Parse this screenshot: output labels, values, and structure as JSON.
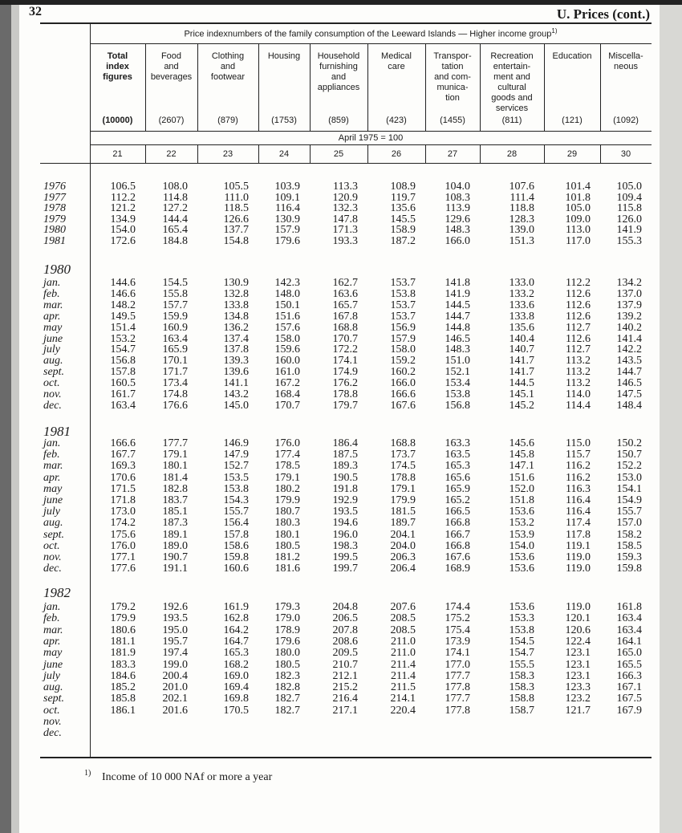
{
  "header": {
    "page_number": "32",
    "section": "U.  Prices (cont.)"
  },
  "table": {
    "title": "Price indexnumbers of the family consumption of the Leeward Islands — Higher income group",
    "title_note": "1)",
    "columns": [
      {
        "label": "Total\nindex\nfigures",
        "weight": "(10000)",
        "number": "21"
      },
      {
        "label": "Food\nand\nbeverages",
        "weight": "(2607)",
        "number": "22"
      },
      {
        "label": "Clothing\nand\nfootwear",
        "weight": "(879)",
        "number": "23"
      },
      {
        "label": "Housing",
        "weight": "(1753)",
        "number": "24"
      },
      {
        "label": "Household\nfurnishing\nand\nappliances",
        "weight": "(859)",
        "number": "25"
      },
      {
        "label": "Medical\ncare",
        "weight": "(423)",
        "number": "26"
      },
      {
        "label": "Transpor-\ntation\nand com-\nmunica-\ntion",
        "weight": "(1455)",
        "number": "27"
      },
      {
        "label": "Recreation\nentertain-\nment and\ncultural\ngoods and\nservices",
        "weight": "(811)",
        "number": "28"
      },
      {
        "label": "Education",
        "weight": "(121)",
        "number": "29"
      },
      {
        "label": "Miscella-\nneous",
        "weight": "(1092)",
        "number": "30"
      }
    ],
    "base": "April 1975 = 100",
    "groups": [
      {
        "rows": [
          {
            "label": "1976",
            "values": [
              "106.5",
              "108.0",
              "105.5",
              "103.9",
              "113.3",
              "108.9",
              "104.0",
              "107.6",
              "101.4",
              "105.0"
            ]
          },
          {
            "label": "1977",
            "values": [
              "112.2",
              "114.8",
              "111.0",
              "109.1",
              "120.9",
              "119.7",
              "108.3",
              "111.4",
              "101.8",
              "109.4"
            ]
          },
          {
            "label": "1978",
            "values": [
              "121.2",
              "127.2",
              "118.5",
              "116.4",
              "132.3",
              "135.6",
              "113.9",
              "118.8",
              "105.0",
              "115.8"
            ]
          },
          {
            "label": "1979",
            "values": [
              "134.9",
              "144.4",
              "126.6",
              "130.9",
              "147.8",
              "145.5",
              "129.6",
              "128.3",
              "109.0",
              "126.0"
            ]
          },
          {
            "label": "1980",
            "values": [
              "154.0",
              "165.4",
              "137.7",
              "157.9",
              "171.3",
              "158.9",
              "148.3",
              "139.0",
              "113.0",
              "141.9"
            ]
          },
          {
            "label": "1981",
            "values": [
              "172.6",
              "184.8",
              "154.8",
              "179.6",
              "193.3",
              "187.2",
              "166.0",
              "151.3",
              "117.0",
              "155.3"
            ]
          }
        ]
      },
      {
        "heading": "1980",
        "rows": [
          {
            "label": "jan.",
            "values": [
              "144.6",
              "154.5",
              "130.9",
              "142.3",
              "162.7",
              "153.7",
              "141.8",
              "133.0",
              "112.2",
              "134.2"
            ]
          },
          {
            "label": "feb.",
            "values": [
              "146.6",
              "155.8",
              "132.8",
              "148.0",
              "163.6",
              "153.8",
              "141.9",
              "133.2",
              "112.6",
              "137.0"
            ]
          },
          {
            "label": "mar.",
            "values": [
              "148.2",
              "157.7",
              "133.8",
              "150.1",
              "165.7",
              "153.7",
              "144.5",
              "133.6",
              "112.6",
              "137.9"
            ]
          },
          {
            "label": "apr.",
            "values": [
              "149.5",
              "159.9",
              "134.8",
              "151.6",
              "167.8",
              "153.7",
              "144.7",
              "133.8",
              "112.6",
              "139.2"
            ]
          },
          {
            "label": "may",
            "values": [
              "151.4",
              "160.9",
              "136.2",
              "157.6",
              "168.8",
              "156.9",
              "144.8",
              "135.6",
              "112.7",
              "140.2"
            ]
          },
          {
            "label": "june",
            "values": [
              "153.2",
              "163.4",
              "137.4",
              "158.0",
              "170.7",
              "157.9",
              "146.5",
              "140.4",
              "112.6",
              "141.4"
            ]
          },
          {
            "label": "july",
            "values": [
              "154.7",
              "165.9",
              "137.8",
              "159.6",
              "172.2",
              "158.0",
              "148.3",
              "140.7",
              "112.7",
              "142.2"
            ]
          },
          {
            "label": "aug.",
            "values": [
              "156.8",
              "170.1",
              "139.3",
              "160.0",
              "174.1",
              "159.2",
              "151.0",
              "141.7",
              "113.2",
              "143.5"
            ]
          },
          {
            "label": "sept.",
            "values": [
              "157.8",
              "171.7",
              "139.6",
              "161.0",
              "174.9",
              "160.2",
              "152.1",
              "141.7",
              "113.2",
              "144.7"
            ]
          },
          {
            "label": "oct.",
            "values": [
              "160.5",
              "173.4",
              "141.1",
              "167.2",
              "176.2",
              "166.0",
              "153.4",
              "144.5",
              "113.2",
              "146.5"
            ]
          },
          {
            "label": "nov.",
            "values": [
              "161.7",
              "174.8",
              "143.2",
              "168.4",
              "178.8",
              "166.6",
              "153.8",
              "145.1",
              "114.0",
              "147.5"
            ]
          },
          {
            "label": "dec.",
            "values": [
              "163.4",
              "176.6",
              "145.0",
              "170.7",
              "179.7",
              "167.6",
              "156.8",
              "145.2",
              "114.4",
              "148.4"
            ]
          }
        ]
      },
      {
        "heading": "1981",
        "rows": [
          {
            "label": "jan.",
            "values": [
              "166.6",
              "177.7",
              "146.9",
              "176.0",
              "186.4",
              "168.8",
              "163.3",
              "145.6",
              "115.0",
              "150.2"
            ]
          },
          {
            "label": "feb.",
            "values": [
              "167.7",
              "179.1",
              "147.9",
              "177.4",
              "187.5",
              "173.7",
              "163.5",
              "145.8",
              "115.7",
              "150.7"
            ]
          },
          {
            "label": "mar.",
            "values": [
              "169.3",
              "180.1",
              "152.7",
              "178.5",
              "189.3",
              "174.5",
              "165.3",
              "147.1",
              "116.2",
              "152.2"
            ]
          },
          {
            "label": "apr.",
            "values": [
              "170.6",
              "181.4",
              "153.5",
              "179.1",
              "190.5",
              "178.8",
              "165.6",
              "151.6",
              "116.2",
              "153.0"
            ]
          },
          {
            "label": "may",
            "values": [
              "171.5",
              "182.8",
              "153.8",
              "180.2",
              "191.8",
              "179.1",
              "165.9",
              "152.0",
              "116.3",
              "154.1"
            ]
          },
          {
            "label": "june",
            "values": [
              "171.8",
              "183.7",
              "154.3",
              "179.9",
              "192.9",
              "179.9",
              "165.2",
              "151.8",
              "116.4",
              "154.9"
            ]
          },
          {
            "label": "july",
            "values": [
              "173.0",
              "185.1",
              "155.7",
              "180.7",
              "193.5",
              "181.5",
              "166.5",
              "153.6",
              "116.4",
              "155.7"
            ]
          },
          {
            "label": "aug.",
            "values": [
              "174.2",
              "187.3",
              "156.4",
              "180.3",
              "194.6",
              "189.7",
              "166.8",
              "153.2",
              "117.4",
              "157.0"
            ]
          },
          {
            "label": "sept.",
            "values": [
              "175.6",
              "189.1",
              "157.8",
              "180.1",
              "196.0",
              "204.1",
              "166.7",
              "153.9",
              "117.8",
              "158.2"
            ]
          },
          {
            "label": "oct.",
            "values": [
              "176.0",
              "189.0",
              "158.6",
              "180.5",
              "198.3",
              "204.0",
              "166.8",
              "154.0",
              "119.1",
              "158.5"
            ]
          },
          {
            "label": "nov.",
            "values": [
              "177.1",
              "190.7",
              "159.8",
              "181.2",
              "199.5",
              "206.3",
              "167.6",
              "153.6",
              "119.0",
              "159.3"
            ]
          },
          {
            "label": "dec.",
            "values": [
              "177.6",
              "191.1",
              "160.6",
              "181.6",
              "199.7",
              "206.4",
              "168.9",
              "153.6",
              "119.0",
              "159.8"
            ]
          }
        ]
      },
      {
        "heading": "1982",
        "rows": [
          {
            "label": "jan.",
            "values": [
              "179.2",
              "192.6",
              "161.9",
              "179.3",
              "204.8",
              "207.6",
              "174.4",
              "153.6",
              "119.0",
              "161.8"
            ]
          },
          {
            "label": "feb.",
            "values": [
              "179.9",
              "193.5",
              "162.8",
              "179.0",
              "206.5",
              "208.5",
              "175.2",
              "153.3",
              "120.1",
              "163.4"
            ]
          },
          {
            "label": "mar.",
            "values": [
              "180.6",
              "195.0",
              "164.2",
              "178.9",
              "207.8",
              "208.5",
              "175.4",
              "153.8",
              "120.6",
              "163.4"
            ]
          },
          {
            "label": "apr.",
            "values": [
              "181.1",
              "195.7",
              "164.7",
              "179.6",
              "208.6",
              "211.0",
              "173.9",
              "154.5",
              "122.4",
              "164.1"
            ]
          },
          {
            "label": "may",
            "values": [
              "181.9",
              "197.4",
              "165.3",
              "180.0",
              "209.5",
              "211.0",
              "174.1",
              "154.7",
              "123.1",
              "165.0"
            ]
          },
          {
            "label": "june",
            "values": [
              "183.3",
              "199.0",
              "168.2",
              "180.5",
              "210.7",
              "211.4",
              "177.0",
              "155.5",
              "123.1",
              "165.5"
            ]
          },
          {
            "label": "july",
            "values": [
              "184.6",
              "200.4",
              "169.0",
              "182.3",
              "212.1",
              "211.4",
              "177.7",
              "158.3",
              "123.1",
              "166.3"
            ]
          },
          {
            "label": "aug.",
            "values": [
              "185.2",
              "201.0",
              "169.4",
              "182.8",
              "215.2",
              "211.5",
              "177.8",
              "158.3",
              "123.3",
              "167.1"
            ]
          },
          {
            "label": "sept.",
            "values": [
              "185.8",
              "202.1",
              "169.8",
              "182.7",
              "216.4",
              "214.1",
              "177.7",
              "158.8",
              "123.2",
              "167.5"
            ]
          },
          {
            "label": "oct.",
            "values": [
              "186.1",
              "201.6",
              "170.5",
              "182.7",
              "217.1",
              "220.4",
              "177.8",
              "158.7",
              "121.7",
              "167.9"
            ]
          },
          {
            "label": "nov."
          },
          {
            "label": "dec."
          }
        ]
      }
    ]
  },
  "footnote": {
    "marker": "1)",
    "text": "Income of 10 000 NAf or more a year"
  }
}
